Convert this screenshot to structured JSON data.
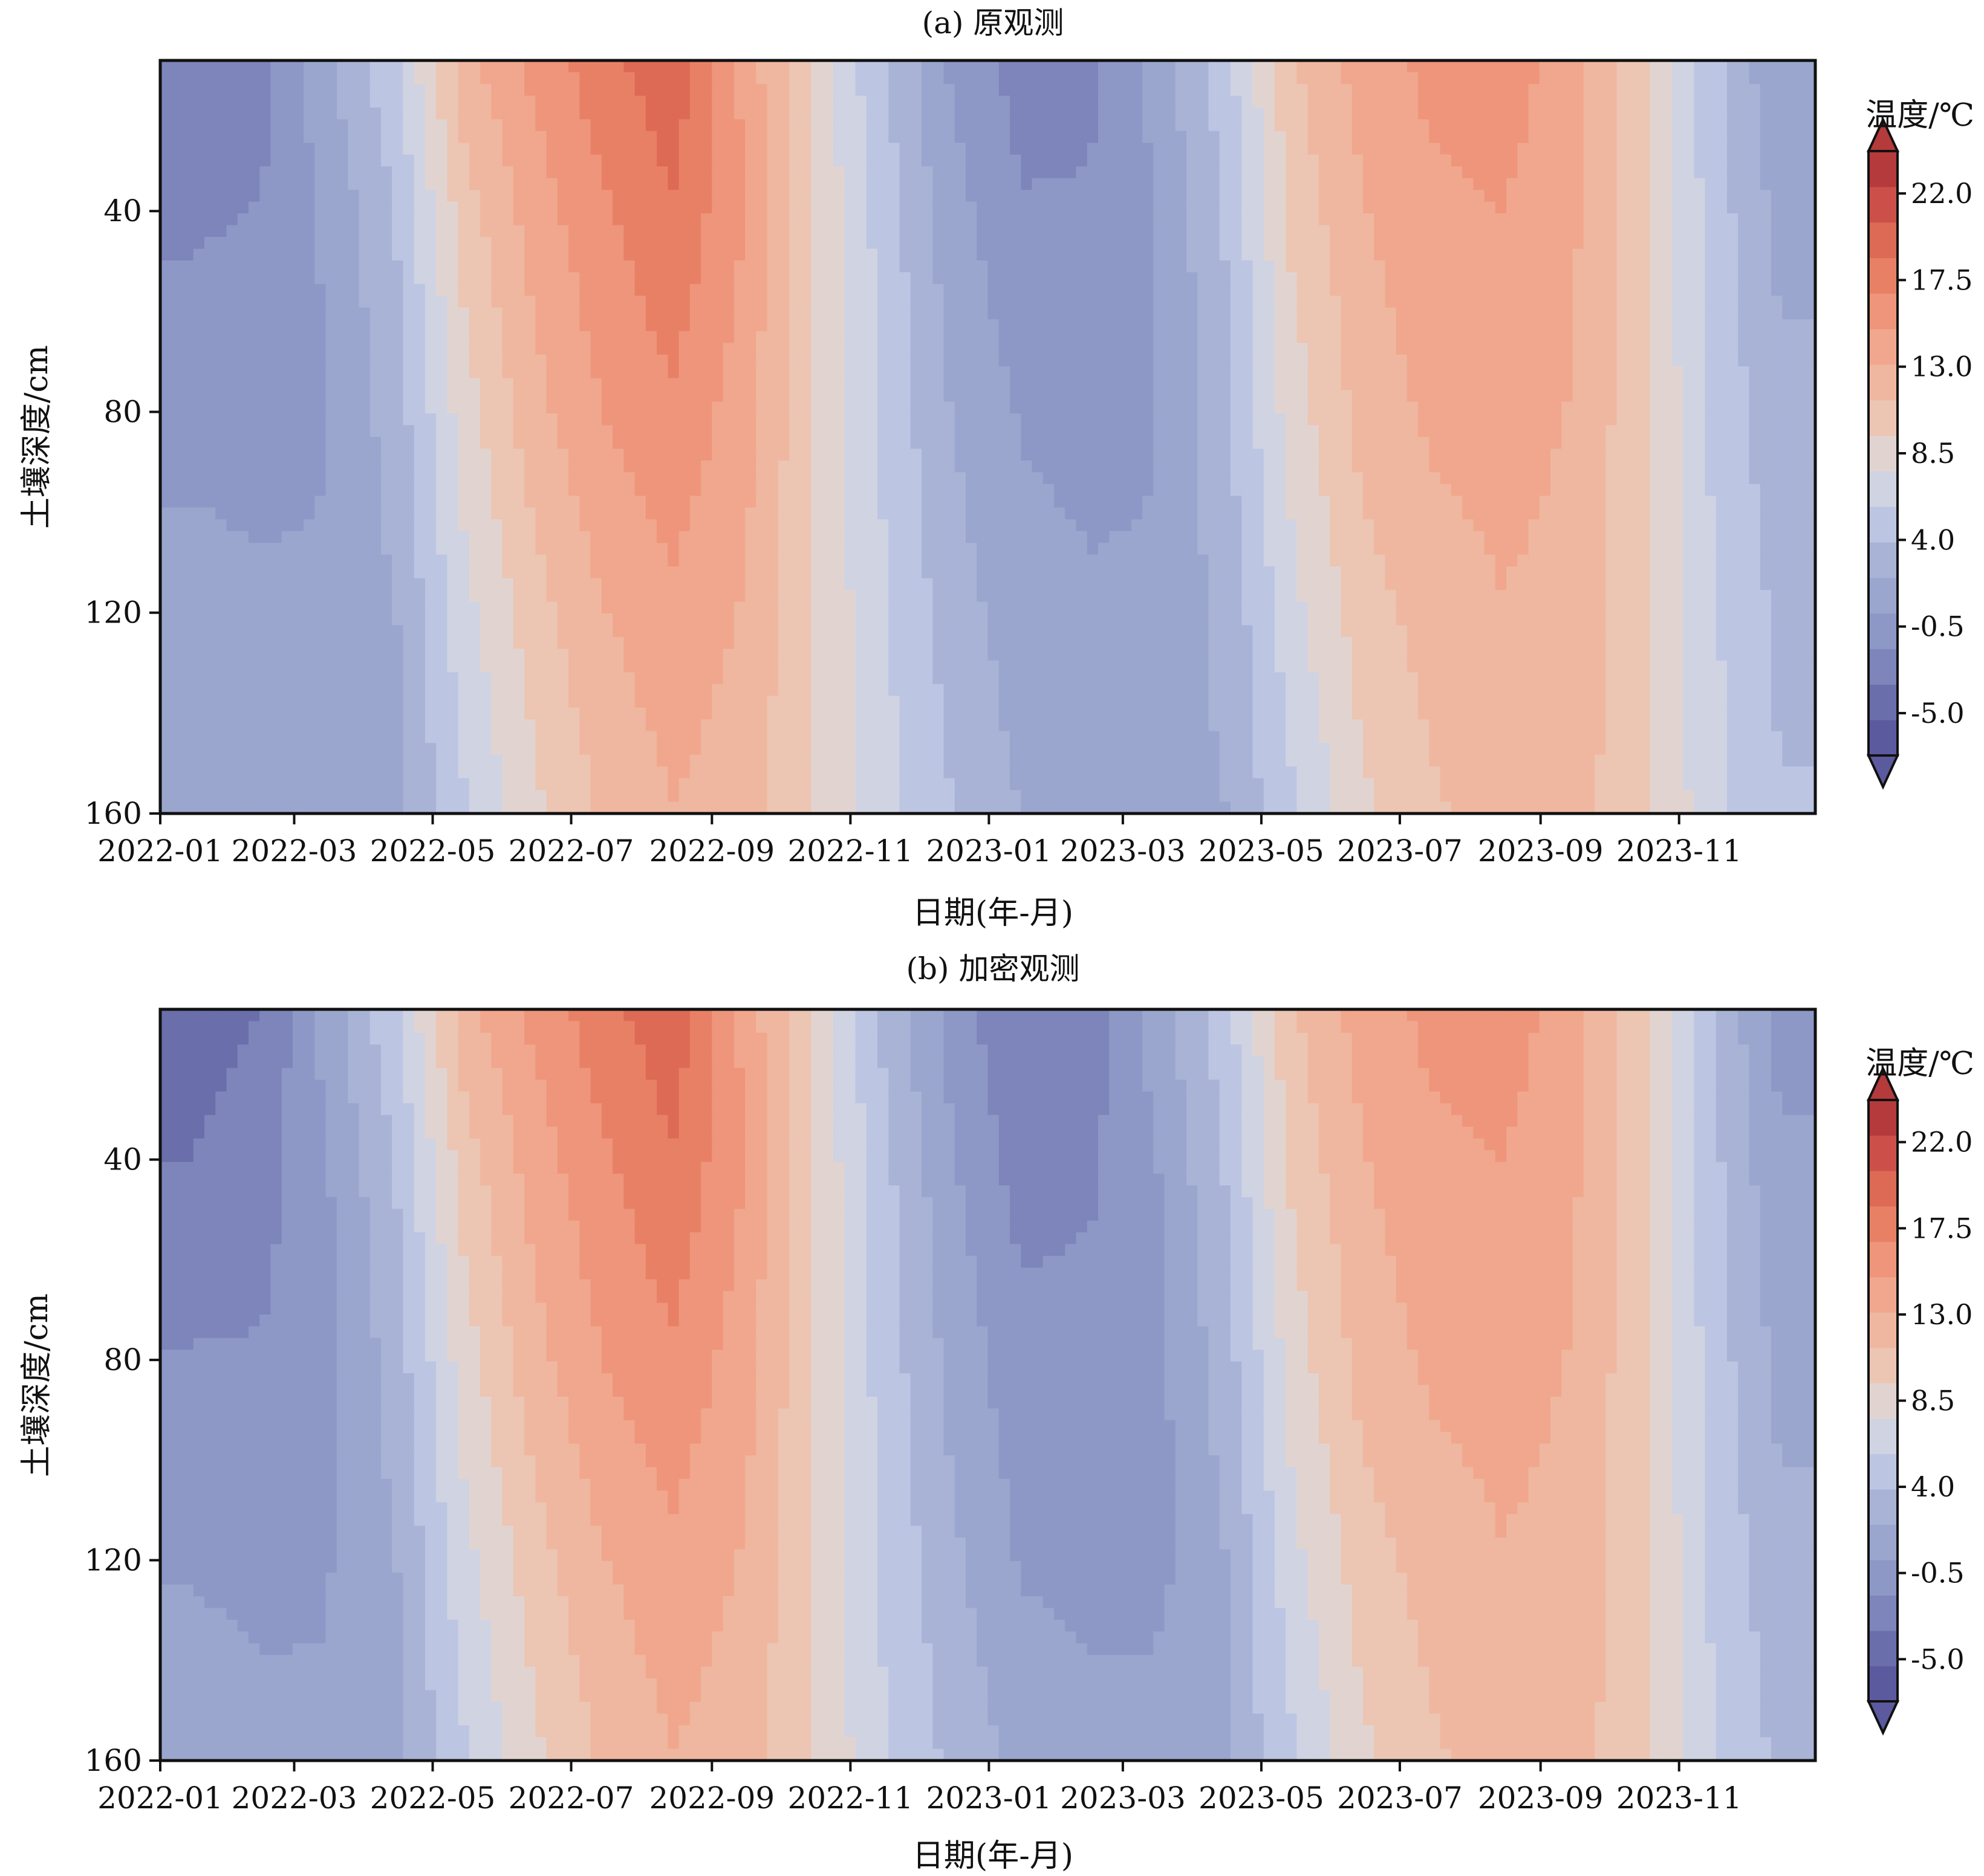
{
  "colors": {
    "palette": [
      "#5b5a9f",
      "#6a6eaa",
      "#7d85ba",
      "#8e98c6",
      "#9aa6cd",
      "#a8b3d6",
      "#bcc5e2",
      "#d0d3e2",
      "#e1d4d0",
      "#ecc5b3",
      "#efb7a0",
      "#f0a78d",
      "#ee957b",
      "#e88066",
      "#dd6a55",
      "#cc5049",
      "#b53a3b"
    ]
  },
  "chart_data": [
    {
      "type": "heatmap",
      "panel": "a",
      "title": "(a) 原观测",
      "xlabel": "日期(年-月)",
      "ylabel": "土壤深度/cm",
      "x_ticks": [
        "2022-01",
        "2022-03",
        "2022-05",
        "2022-07",
        "2022-09",
        "2022-11",
        "2023-01",
        "2023-03",
        "2023-05",
        "2023-07",
        "2023-09",
        "2023-11"
      ],
      "y_ticks": [
        40,
        80,
        120,
        160
      ],
      "ylim": [
        10,
        160
      ],
      "y_inverted": true,
      "xlim": [
        "2022-01",
        "2023-12"
      ],
      "colorbar": {
        "title": "温度/℃",
        "ticks": [
          "22.0",
          "17.5",
          "13.0",
          "8.5",
          "4.0",
          "-0.5",
          "-5.0"
        ],
        "range": [
          -7.2,
          24.2
        ],
        "extend": "both"
      },
      "depth_samples": [
        10,
        40,
        80,
        120,
        160
      ],
      "date_samples": [
        "2022-01-15",
        "2022-02-15",
        "2022-03-15",
        "2022-04-15",
        "2022-05-15",
        "2022-06-15",
        "2022-07-15",
        "2022-08-15",
        "2022-09-15",
        "2022-10-15",
        "2022-11-15",
        "2022-12-15",
        "2023-01-15",
        "2023-02-15",
        "2023-03-15",
        "2023-04-15",
        "2023-05-15",
        "2023-06-15",
        "2023-07-15",
        "2023-08-15",
        "2023-09-15",
        "2023-10-15",
        "2023-11-15",
        "2023-12-15"
      ],
      "temperature": [
        [
          -3.5,
          -2.5,
          1.5,
          5.5,
          12.5,
          15.5,
          18.0,
          20.0,
          14.5,
          9.0,
          4.0,
          0.0,
          -2.5,
          -2.0,
          1.0,
          5.0,
          11.0,
          14.0,
          15.5,
          16.0,
          14.0,
          10.0,
          4.5,
          0.5
        ],
        [
          -2.0,
          -1.5,
          0.5,
          4.0,
          10.5,
          14.0,
          16.5,
          18.5,
          15.0,
          9.5,
          5.0,
          1.0,
          -1.5,
          -1.5,
          0.0,
          4.0,
          10.0,
          13.0,
          14.5,
          15.0,
          13.5,
          10.0,
          5.0,
          1.5
        ],
        [
          -0.5,
          -0.5,
          0.0,
          3.0,
          8.5,
          12.5,
          15.0,
          16.5,
          14.0,
          9.5,
          5.5,
          2.0,
          0.0,
          -0.5,
          0.0,
          3.5,
          8.5,
          12.0,
          13.5,
          14.0,
          13.0,
          10.0,
          5.5,
          2.5
        ],
        [
          1.0,
          0.5,
          0.5,
          2.0,
          7.0,
          10.5,
          13.0,
          14.5,
          13.0,
          9.5,
          6.0,
          3.0,
          1.0,
          0.5,
          0.5,
          2.5,
          7.0,
          10.5,
          12.0,
          13.0,
          12.5,
          10.0,
          6.0,
          3.5
        ],
        [
          2.0,
          1.5,
          1.0,
          1.5,
          5.5,
          9.0,
          11.5,
          13.0,
          12.0,
          9.5,
          6.5,
          4.0,
          2.0,
          1.5,
          1.5,
          2.0,
          5.5,
          9.0,
          11.0,
          12.0,
          12.0,
          10.0,
          6.5,
          4.0
        ]
      ]
    },
    {
      "type": "heatmap",
      "panel": "b",
      "title": "(b) 加密观测",
      "xlabel": "日期(年-月)",
      "ylabel": "土壤深度/cm",
      "x_ticks": [
        "2022-01",
        "2022-03",
        "2022-05",
        "2022-07",
        "2022-09",
        "2022-11",
        "2023-01",
        "2023-03",
        "2023-05",
        "2023-07",
        "2023-09",
        "2023-11"
      ],
      "y_ticks": [
        40,
        80,
        120,
        160
      ],
      "ylim": [
        10,
        160
      ],
      "y_inverted": true,
      "xlim": [
        "2022-01",
        "2023-12"
      ],
      "colorbar": {
        "title": "温度/℃",
        "ticks": [
          "22.0",
          "17.5",
          "13.0",
          "8.5",
          "4.0",
          "-0.5",
          "-5.0"
        ],
        "range": [
          -7.2,
          24.2
        ],
        "extend": "both"
      },
      "depth_samples": [
        10,
        40,
        80,
        120,
        160
      ],
      "date_samples": [
        "2022-01-15",
        "2022-02-15",
        "2022-03-15",
        "2022-04-15",
        "2022-05-15",
        "2022-06-15",
        "2022-07-15",
        "2022-08-15",
        "2022-09-15",
        "2022-10-15",
        "2022-11-15",
        "2022-12-15",
        "2023-01-15",
        "2023-02-15",
        "2023-03-15",
        "2023-04-15",
        "2023-05-15",
        "2023-06-15",
        "2023-07-15",
        "2023-08-15",
        "2023-09-15",
        "2023-10-15",
        "2023-11-15",
        "2023-12-15"
      ],
      "temperature": [
        [
          -4.5,
          -3.5,
          1.0,
          5.5,
          12.5,
          15.5,
          18.0,
          20.0,
          14.5,
          9.0,
          3.5,
          -0.5,
          -3.5,
          -2.5,
          1.0,
          5.0,
          11.0,
          14.0,
          15.5,
          16.0,
          14.0,
          10.0,
          4.0,
          -0.5
        ],
        [
          -3.5,
          -2.5,
          0.0,
          4.0,
          10.5,
          14.0,
          16.5,
          18.5,
          15.0,
          9.5,
          4.5,
          0.5,
          -2.5,
          -2.0,
          0.0,
          4.0,
          10.0,
          13.0,
          14.5,
          15.0,
          13.5,
          10.0,
          4.5,
          0.5
        ],
        [
          -1.5,
          -1.5,
          -0.5,
          3.0,
          8.5,
          12.5,
          15.0,
          16.5,
          14.0,
          9.5,
          5.0,
          1.5,
          -1.0,
          -1.0,
          -0.5,
          3.0,
          8.5,
          12.0,
          13.5,
          14.0,
          13.0,
          10.0,
          5.0,
          1.5
        ],
        [
          0.0,
          -0.5,
          0.0,
          2.0,
          7.0,
          10.5,
          13.0,
          14.5,
          13.0,
          9.5,
          5.5,
          2.5,
          0.0,
          -0.5,
          -0.5,
          2.0,
          7.0,
          10.5,
          12.0,
          13.0,
          12.5,
          10.0,
          5.5,
          2.5
        ],
        [
          1.5,
          1.0,
          0.5,
          1.5,
          5.5,
          9.0,
          11.5,
          13.0,
          12.0,
          9.5,
          6.0,
          3.5,
          1.5,
          1.0,
          1.0,
          2.0,
          5.5,
          9.0,
          11.0,
          12.0,
          12.0,
          10.0,
          6.0,
          3.5
        ]
      ]
    }
  ]
}
